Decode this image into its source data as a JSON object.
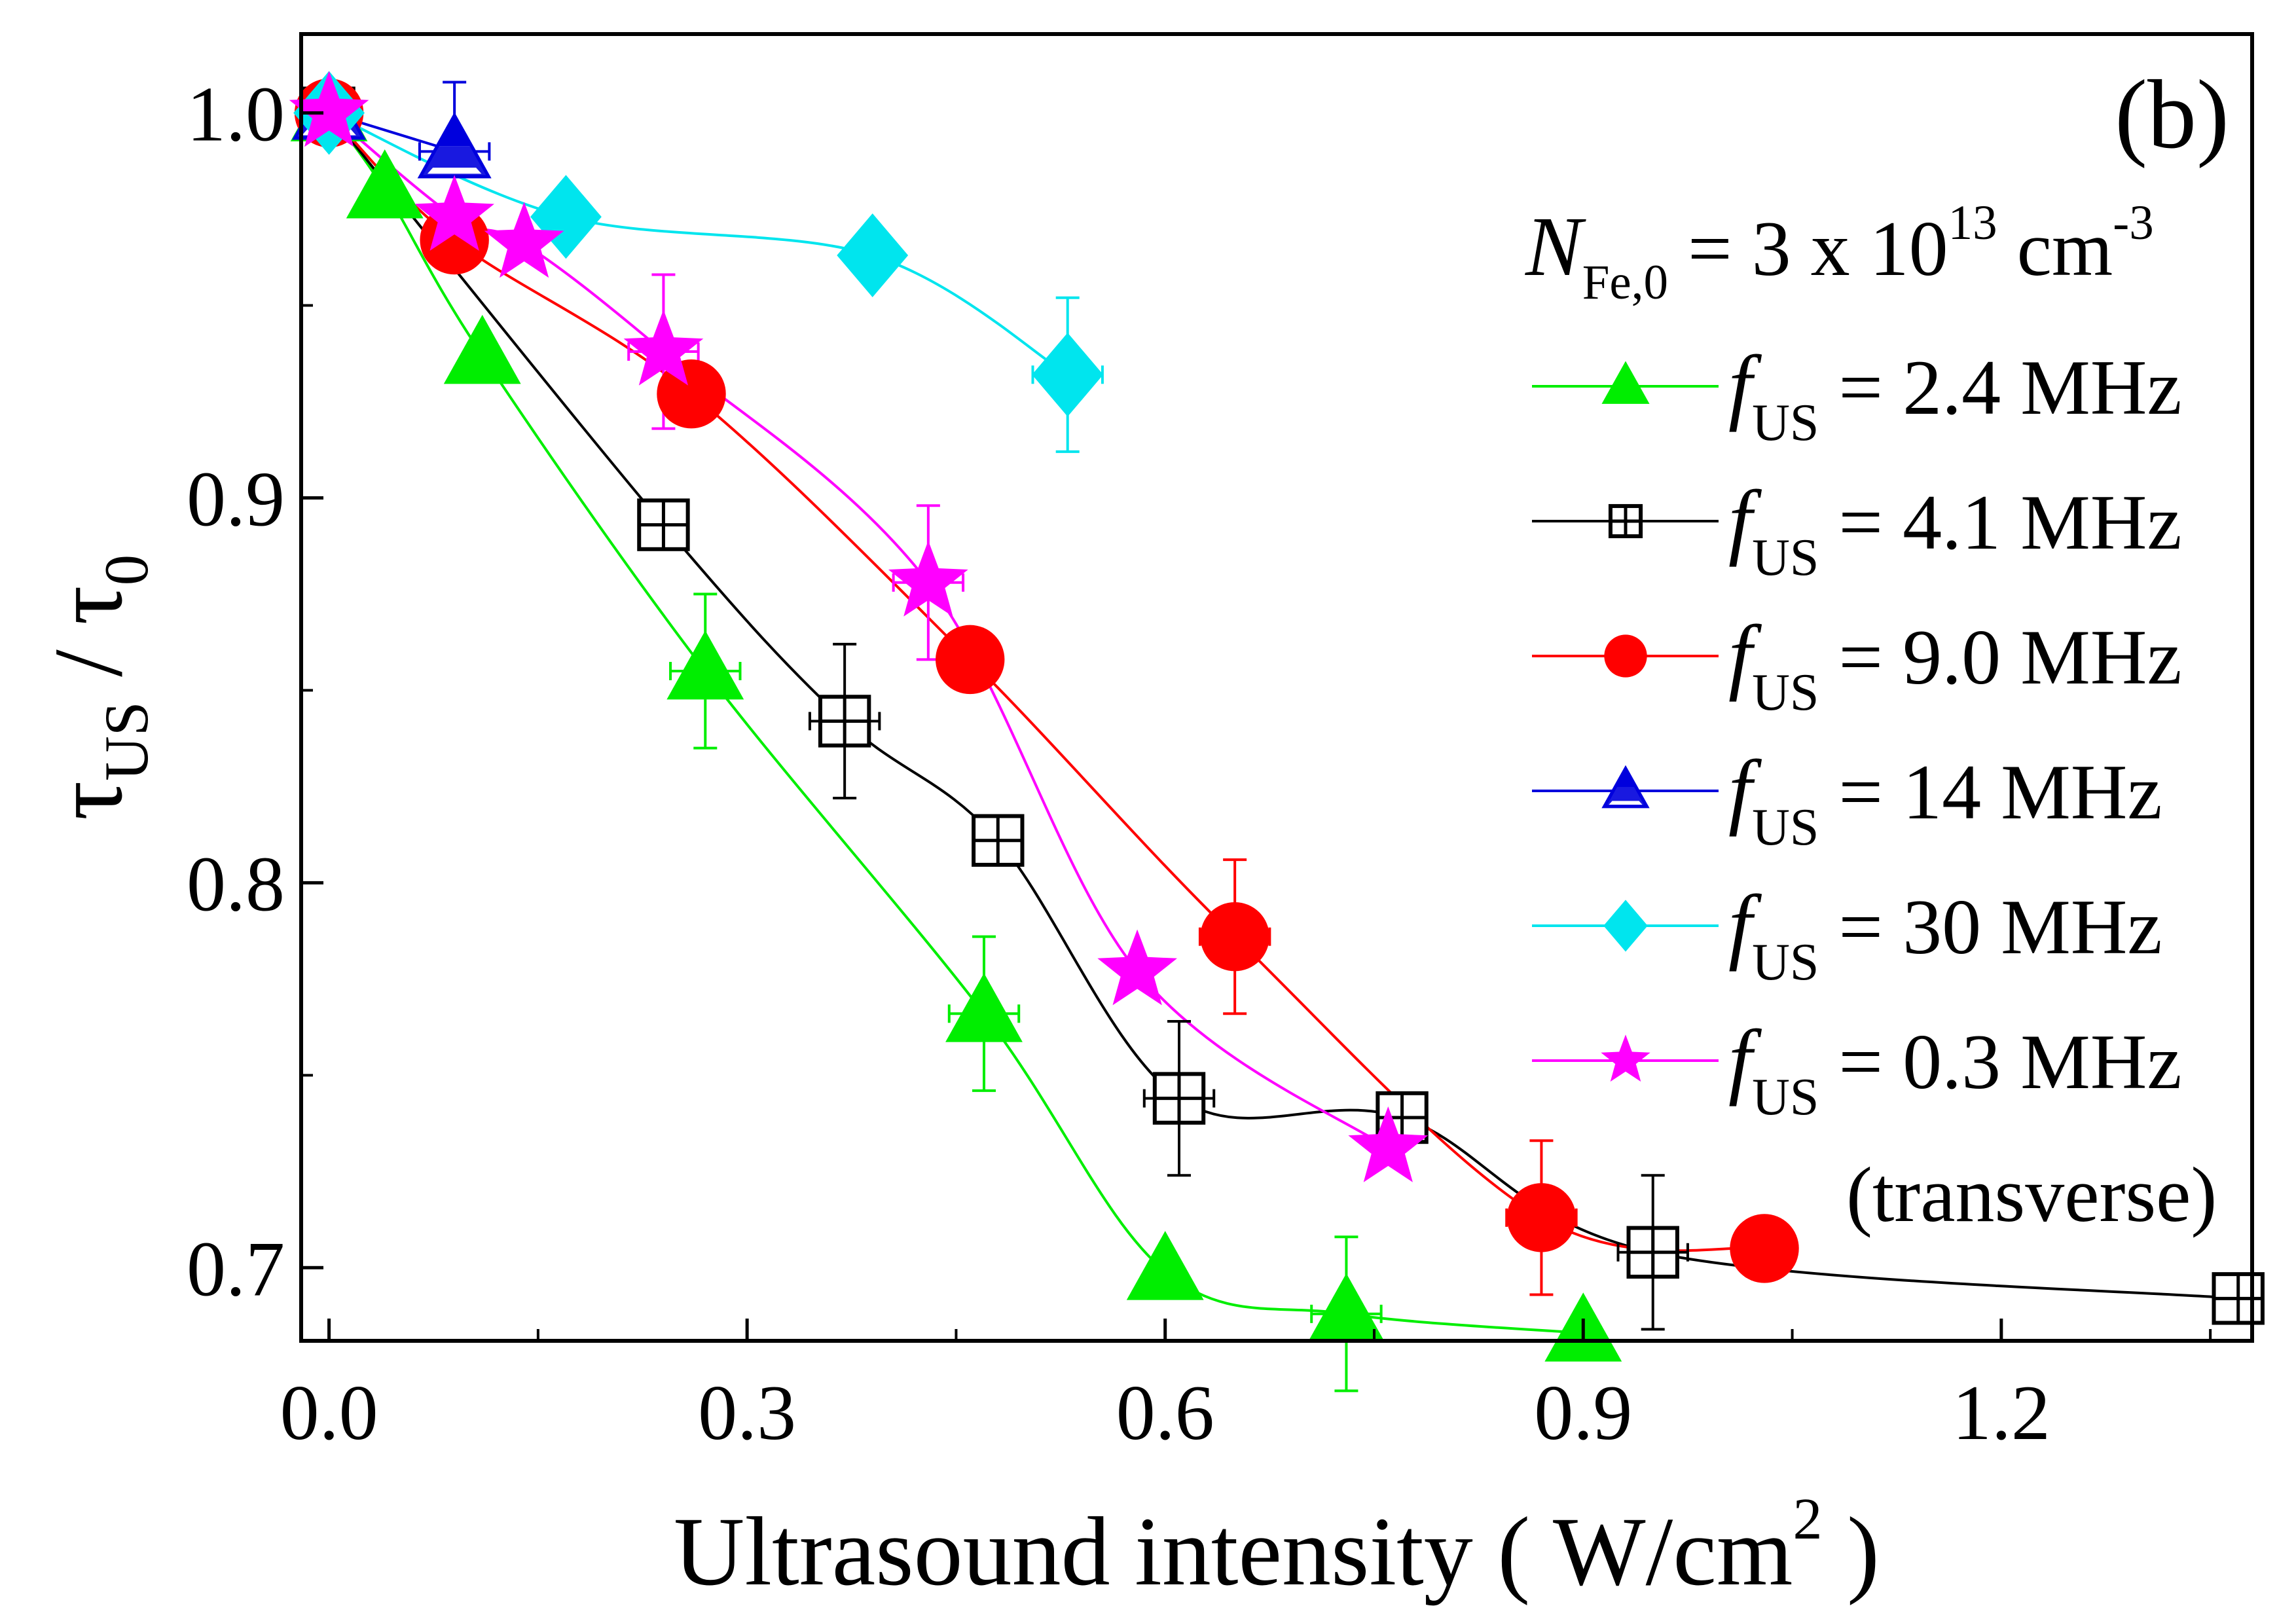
{
  "chart_data": {
    "type": "scatter",
    "panel_label": "(b)",
    "xlabel_main": "Ultrasound intensity ( W/cm",
    "xlabel_sup": "2",
    "xlabel_end": " )",
    "ylabel_tau": "τ",
    "ylabel_sub_us": "US",
    "ylabel_slash": " / ",
    "ylabel_sub_0": "0",
    "xlim": [
      -0.02,
      1.38
    ],
    "ylim": [
      0.681,
      1.0205
    ],
    "xticks": [
      0.0,
      0.3,
      0.6,
      0.9,
      1.2
    ],
    "xtick_labels": [
      "0.0",
      "0.3",
      "0.6",
      "0.9",
      "1.2"
    ],
    "yticks": [
      0.7,
      0.8,
      0.9,
      1.0
    ],
    "ytick_labels": [
      "0.7",
      "0.8",
      "0.9",
      "1.0"
    ],
    "grid": false,
    "legend_position": "right",
    "legend_header": {
      "symbol": "N",
      "subscript": "Fe,0",
      "text": " = 3 x 10",
      "sup": "13",
      "unit": " cm",
      "unit_sup": "-3"
    },
    "legend_prefix": "f",
    "legend_subscript": "US",
    "legend_footer": "(transverse)",
    "series": [
      {
        "name": " = 2.4 MHz",
        "color": "#00ee00",
        "marker": "triangle",
        "x": [
          0.0,
          0.04,
          0.11,
          0.27,
          0.47,
          0.6,
          0.73,
          0.9
        ],
        "y": [
          1.0,
          0.98,
          0.937,
          0.855,
          0.766,
          0.699,
          0.688,
          0.683
        ],
        "err_y": [
          null,
          null,
          null,
          0.02,
          0.02,
          null,
          0.02,
          null
        ],
        "err_x": [
          null,
          null,
          null,
          0.025,
          0.025,
          null,
          0.025,
          null
        ]
      },
      {
        "name": " = 4.1 MHz",
        "color": "#000000",
        "marker": "boxplus",
        "x": [
          0.0,
          0.24,
          0.37,
          0.48,
          0.61,
          0.77,
          0.95,
          1.37
        ],
        "y": [
          1.0,
          0.893,
          0.842,
          0.811,
          0.744,
          0.739,
          0.704,
          0.692
        ],
        "err_y": [
          null,
          null,
          0.02,
          null,
          0.02,
          null,
          0.02,
          null
        ],
        "err_x": [
          null,
          null,
          0.025,
          null,
          0.025,
          null,
          0.025,
          null
        ]
      },
      {
        "name": " = 9.0 MHz",
        "color": "#ff0000",
        "marker": "circle",
        "x": [
          0.0,
          0.09,
          0.26,
          0.46,
          0.65,
          0.87,
          1.03
        ],
        "y": [
          1.0,
          0.967,
          0.927,
          0.858,
          0.786,
          0.713,
          0.705
        ],
        "err_y": [
          null,
          null,
          null,
          null,
          0.02,
          0.02,
          null
        ],
        "err_x": [
          null,
          null,
          null,
          null,
          0.025,
          0.025,
          null
        ]
      },
      {
        "name": " = 14 MHz",
        "color": "#0000dd",
        "marker": "triangle-half",
        "x": [
          0.0,
          0.09
        ],
        "y": [
          1.0,
          0.99
        ],
        "err_y": [
          null,
          0.018
        ],
        "err_x": [
          null,
          0.025
        ]
      },
      {
        "name": " = 30 MHz",
        "color": "#00e5ee",
        "marker": "diamond",
        "x": [
          0.0,
          0.17,
          0.39,
          0.53
        ],
        "y": [
          1.0,
          0.973,
          0.963,
          0.932
        ],
        "err_y": [
          null,
          null,
          null,
          0.02
        ],
        "err_x": [
          null,
          null,
          null,
          0.025
        ]
      },
      {
        "name": " = 0.3 MHz",
        "color": "#ff00ff",
        "marker": "star",
        "x": [
          0.0,
          0.09,
          0.14,
          0.24,
          0.43,
          0.58,
          0.76
        ],
        "y": [
          1.0,
          0.973,
          0.966,
          0.938,
          0.878,
          0.777,
          0.731
        ],
        "err_y": [
          null,
          null,
          null,
          0.02,
          0.02,
          null,
          null
        ],
        "err_x": [
          null,
          null,
          null,
          0.025,
          0.025,
          null,
          null
        ]
      }
    ]
  }
}
